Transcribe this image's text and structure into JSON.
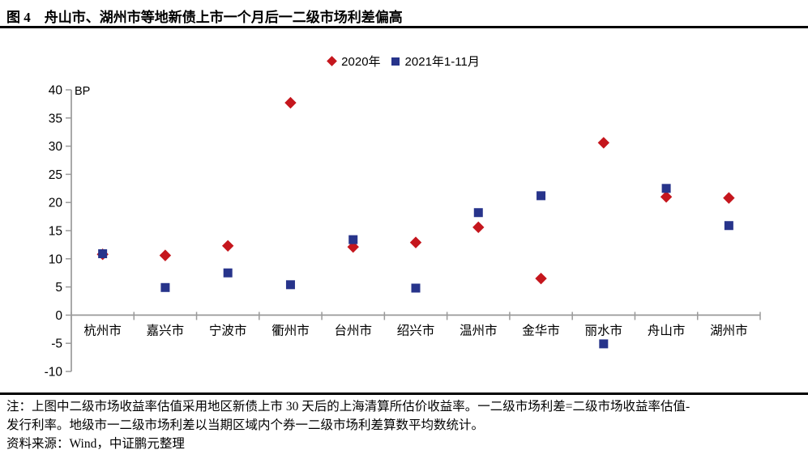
{
  "figure": {
    "title": "图 4　舟山市、湖州市等地新债上市一个月后一二级市场利差偏高"
  },
  "legend": [
    {
      "label": "2020年",
      "marker": "diamond",
      "color": "#C5161D"
    },
    {
      "label": "2021年1-11月",
      "marker": "square",
      "color": "#27348B"
    }
  ],
  "chart_data": {
    "type": "scatter",
    "title": "舟山市、湖州市等地新债上市一个月后一二级市场利差偏高",
    "categories": [
      "杭州市",
      "嘉兴市",
      "宁波市",
      "衢州市",
      "台州市",
      "绍兴市",
      "温州市",
      "金华市",
      "丽水市",
      "舟山市",
      "湖州市"
    ],
    "series": [
      {
        "name": "2020年",
        "marker": "diamond",
        "color": "#C5161D",
        "values": [
          10.8,
          10.6,
          12.3,
          37.7,
          12.1,
          12.9,
          15.6,
          6.5,
          30.6,
          21.0,
          20.8
        ]
      },
      {
        "name": "2021年1-11月",
        "marker": "square",
        "color": "#27348B",
        "values": [
          10.9,
          4.9,
          7.5,
          5.4,
          13.4,
          4.8,
          18.2,
          21.2,
          -5.1,
          22.5,
          15.9
        ]
      }
    ],
    "xlabel": "",
    "ylabel": "BP",
    "ylim": [
      -10,
      40
    ],
    "ytick_step": 5,
    "grid": false,
    "legend_position": "top-center",
    "axis_color": "#9a9a9a"
  },
  "notes": {
    "line1": "注：上图中二级市场收益率估值采用地区新债上市 30 天后的上海清算所估价收益率。一二级市场利差=二级市场收益率估值-",
    "line2": "发行利率。地级市一二级市场利差以当期区域内个券一二级市场利差算数平均数统计。",
    "source": "资料来源：Wind，中证鹏元整理"
  }
}
